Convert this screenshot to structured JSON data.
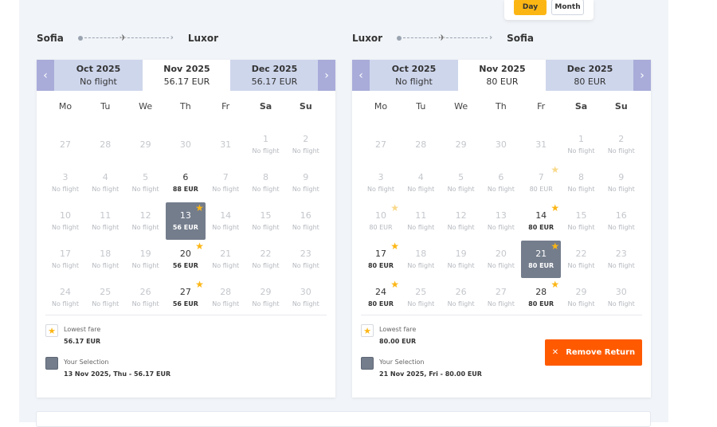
{
  "toggle": {
    "day": "Day",
    "month": "Month"
  },
  "outbound": {
    "from": "Sofia",
    "to": "Luxor",
    "months": [
      {
        "name": "Oct 2025",
        "price": "No flight"
      },
      {
        "name": "Nov 2025",
        "price": "56.17 EUR"
      },
      {
        "name": "Dec 2025",
        "price": "56.17 EUR"
      }
    ],
    "weekdays": [
      "Mo",
      "Tu",
      "We",
      "Th",
      "Fr",
      "Sa",
      "Su"
    ],
    "days": [
      {
        "n": "27",
        "p": ""
      },
      {
        "n": "28",
        "p": ""
      },
      {
        "n": "29",
        "p": ""
      },
      {
        "n": "30",
        "p": ""
      },
      {
        "n": "31",
        "p": ""
      },
      {
        "n": "1",
        "p": "No flight"
      },
      {
        "n": "2",
        "p": "No flight"
      },
      {
        "n": "3",
        "p": "No flight"
      },
      {
        "n": "4",
        "p": "No flight"
      },
      {
        "n": "5",
        "p": "No flight"
      },
      {
        "n": "6",
        "p": "88 EUR",
        "priced": true
      },
      {
        "n": "7",
        "p": "No flight"
      },
      {
        "n": "8",
        "p": "No flight"
      },
      {
        "n": "9",
        "p": "No flight"
      },
      {
        "n": "10",
        "p": "No flight"
      },
      {
        "n": "11",
        "p": "No flight"
      },
      {
        "n": "12",
        "p": "No flight"
      },
      {
        "n": "13",
        "p": "56 EUR",
        "priced": true,
        "star": true,
        "selected": true
      },
      {
        "n": "14",
        "p": "No flight"
      },
      {
        "n": "15",
        "p": "No flight"
      },
      {
        "n": "16",
        "p": "No flight"
      },
      {
        "n": "17",
        "p": "No flight"
      },
      {
        "n": "18",
        "p": "No flight"
      },
      {
        "n": "19",
        "p": "No flight"
      },
      {
        "n": "20",
        "p": "56 EUR",
        "priced": true,
        "star": true
      },
      {
        "n": "21",
        "p": "No flight"
      },
      {
        "n": "22",
        "p": "No flight"
      },
      {
        "n": "23",
        "p": "No flight"
      },
      {
        "n": "24",
        "p": "No flight"
      },
      {
        "n": "25",
        "p": "No flight"
      },
      {
        "n": "26",
        "p": "No flight"
      },
      {
        "n": "27",
        "p": "56 EUR",
        "priced": true,
        "star": true
      },
      {
        "n": "28",
        "p": "No flight"
      },
      {
        "n": "29",
        "p": "No flight"
      },
      {
        "n": "30",
        "p": "No flight"
      }
    ],
    "legend": {
      "lowest_label": "Lowest fare",
      "lowest_value": "56.17 EUR",
      "selection_label": "Your Selection",
      "selection_value": "13 Nov 2025, Thu - 56.17 EUR"
    }
  },
  "return": {
    "from": "Luxor",
    "to": "Sofia",
    "months": [
      {
        "name": "Oct 2025",
        "price": "No flight"
      },
      {
        "name": "Nov 2025",
        "price": "80 EUR"
      },
      {
        "name": "Dec 2025",
        "price": "80 EUR"
      }
    ],
    "weekdays": [
      "Mo",
      "Tu",
      "We",
      "Th",
      "Fr",
      "Sa",
      "Su"
    ],
    "days": [
      {
        "n": "27",
        "p": ""
      },
      {
        "n": "28",
        "p": ""
      },
      {
        "n": "29",
        "p": ""
      },
      {
        "n": "30",
        "p": ""
      },
      {
        "n": "31",
        "p": ""
      },
      {
        "n": "1",
        "p": "No flight"
      },
      {
        "n": "2",
        "p": "No flight"
      },
      {
        "n": "3",
        "p": "No flight"
      },
      {
        "n": "4",
        "p": "No flight"
      },
      {
        "n": "5",
        "p": "No flight"
      },
      {
        "n": "6",
        "p": "No flight"
      },
      {
        "n": "7",
        "p": "80 EUR",
        "star": true,
        "faded": true
      },
      {
        "n": "8",
        "p": "No flight"
      },
      {
        "n": "9",
        "p": "No flight"
      },
      {
        "n": "10",
        "p": "80 EUR",
        "star": true,
        "faded": true
      },
      {
        "n": "11",
        "p": "No flight"
      },
      {
        "n": "12",
        "p": "No flight"
      },
      {
        "n": "13",
        "p": "No flight"
      },
      {
        "n": "14",
        "p": "80 EUR",
        "priced": true,
        "star": true
      },
      {
        "n": "15",
        "p": "No flight"
      },
      {
        "n": "16",
        "p": "No flight"
      },
      {
        "n": "17",
        "p": "80 EUR",
        "priced": true,
        "star": true
      },
      {
        "n": "18",
        "p": "No flight"
      },
      {
        "n": "19",
        "p": "No flight"
      },
      {
        "n": "20",
        "p": "No flight"
      },
      {
        "n": "21",
        "p": "80 EUR",
        "priced": true,
        "star": true,
        "selected": true
      },
      {
        "n": "22",
        "p": "No flight"
      },
      {
        "n": "23",
        "p": "No flight"
      },
      {
        "n": "24",
        "p": "80 EUR",
        "priced": true,
        "star": true
      },
      {
        "n": "25",
        "p": "No flight"
      },
      {
        "n": "26",
        "p": "No flight"
      },
      {
        "n": "27",
        "p": "No flight"
      },
      {
        "n": "28",
        "p": "80 EUR",
        "priced": true,
        "star": true
      },
      {
        "n": "29",
        "p": "No flight"
      },
      {
        "n": "30",
        "p": "No flight"
      }
    ],
    "legend": {
      "lowest_label": "Lowest fare",
      "lowest_value": "80.00 EUR",
      "selection_label": "Your Selection",
      "selection_value": "21 Nov 2025, Fri - 80.00 EUR"
    },
    "remove_label": "Remove Return"
  },
  "icons": {
    "prev": "chevron-left-icon",
    "next": "chevron-right-icon",
    "star": "star-icon",
    "plane": "plane-icon",
    "close": "close-icon"
  },
  "colors": {
    "accent": "#fcb614",
    "selected": "#747d8c",
    "nav": "#a9acd9",
    "month_side": "#ced6ec",
    "remove": "#ff5a00"
  }
}
